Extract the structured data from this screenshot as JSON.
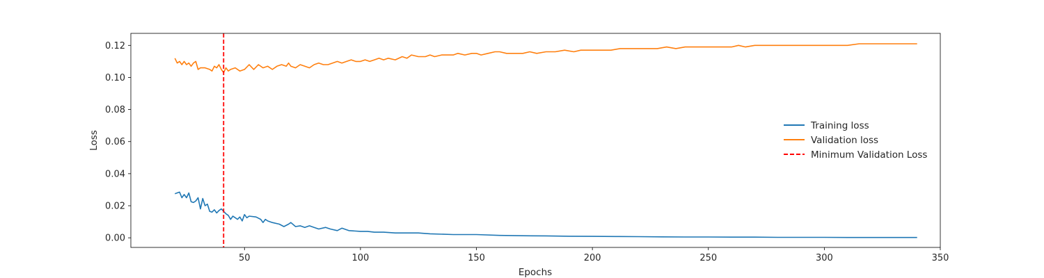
{
  "chart_data": {
    "type": "line",
    "xlabel": "Epochs",
    "ylabel": "Loss",
    "xlim": [
      1,
      350
    ],
    "ylim": [
      -0.006,
      0.1275
    ],
    "x_ticks": [
      50,
      100,
      150,
      200,
      250,
      300,
      350
    ],
    "y_ticks": [
      0.0,
      0.02,
      0.04,
      0.06,
      0.08,
      0.1,
      0.12
    ],
    "x_tick_labels": [
      "50",
      "100",
      "150",
      "200",
      "250",
      "300",
      "350"
    ],
    "y_tick_labels": [
      "0.00",
      "0.02",
      "0.04",
      "0.06",
      "0.08",
      "0.10",
      "0.12"
    ],
    "grid": false,
    "legend_position": "center-right",
    "series": [
      {
        "name": "Training loss",
        "color": "#1f77b4",
        "points": [
          [
            20,
            0.0275
          ],
          [
            22,
            0.0285
          ],
          [
            23,
            0.025
          ],
          [
            24,
            0.027
          ],
          [
            25,
            0.025
          ],
          [
            26,
            0.028
          ],
          [
            27,
            0.0225
          ],
          [
            28,
            0.022
          ],
          [
            29,
            0.023
          ],
          [
            30,
            0.025
          ],
          [
            31,
            0.018
          ],
          [
            32,
            0.0245
          ],
          [
            33,
            0.02
          ],
          [
            34,
            0.021
          ],
          [
            35,
            0.0165
          ],
          [
            36,
            0.016
          ],
          [
            37,
            0.0175
          ],
          [
            38,
            0.0155
          ],
          [
            39,
            0.017
          ],
          [
            40,
            0.018
          ],
          [
            41,
            0.0165
          ],
          [
            42,
            0.015
          ],
          [
            43,
            0.014
          ],
          [
            44,
            0.0115
          ],
          [
            45,
            0.0135
          ],
          [
            46,
            0.0125
          ],
          [
            47,
            0.0115
          ],
          [
            48,
            0.013
          ],
          [
            49,
            0.0105
          ],
          [
            50,
            0.0145
          ],
          [
            51,
            0.0125
          ],
          [
            52,
            0.0135
          ],
          [
            55,
            0.013
          ],
          [
            57,
            0.0115
          ],
          [
            58,
            0.0095
          ],
          [
            59,
            0.0115
          ],
          [
            60,
            0.0105
          ],
          [
            62,
            0.0095
          ],
          [
            65,
            0.0085
          ],
          [
            67,
            0.007
          ],
          [
            69,
            0.0085
          ],
          [
            70,
            0.0095
          ],
          [
            72,
            0.007
          ],
          [
            74,
            0.0075
          ],
          [
            76,
            0.0065
          ],
          [
            78,
            0.0075
          ],
          [
            80,
            0.0065
          ],
          [
            82,
            0.0055
          ],
          [
            85,
            0.0065
          ],
          [
            87,
            0.0055
          ],
          [
            90,
            0.0045
          ],
          [
            92,
            0.006
          ],
          [
            95,
            0.0045
          ],
          [
            100,
            0.004
          ],
          [
            103,
            0.004
          ],
          [
            106,
            0.0035
          ],
          [
            110,
            0.0035
          ],
          [
            115,
            0.003
          ],
          [
            120,
            0.003
          ],
          [
            125,
            0.003
          ],
          [
            130,
            0.0025
          ],
          [
            140,
            0.002
          ],
          [
            150,
            0.002
          ],
          [
            160,
            0.0015
          ],
          [
            170,
            0.0013
          ],
          [
            180,
            0.0012
          ],
          [
            190,
            0.001
          ],
          [
            200,
            0.0009
          ],
          [
            210,
            0.0008
          ],
          [
            220,
            0.0007
          ],
          [
            230,
            0.0006
          ],
          [
            240,
            0.0005
          ],
          [
            250,
            0.0005
          ],
          [
            260,
            0.0004
          ],
          [
            270,
            0.0004
          ],
          [
            280,
            0.0003
          ],
          [
            290,
            0.0003
          ],
          [
            300,
            0.0003
          ],
          [
            310,
            0.0002
          ],
          [
            320,
            0.0002
          ],
          [
            330,
            0.0002
          ],
          [
            340,
            0.0002
          ]
        ]
      },
      {
        "name": "Validation loss",
        "color": "#ff7f0e",
        "points": [
          [
            20,
            0.112
          ],
          [
            21,
            0.109
          ],
          [
            22,
            0.11
          ],
          [
            23,
            0.108
          ],
          [
            24,
            0.11
          ],
          [
            25,
            0.108
          ],
          [
            26,
            0.109
          ],
          [
            27,
            0.107
          ],
          [
            28,
            0.109
          ],
          [
            29,
            0.11
          ],
          [
            30,
            0.105
          ],
          [
            31,
            0.106
          ],
          [
            33,
            0.106
          ],
          [
            35,
            0.105
          ],
          [
            36,
            0.104
          ],
          [
            37,
            0.107
          ],
          [
            38,
            0.106
          ],
          [
            39,
            0.108
          ],
          [
            40,
            0.105
          ],
          [
            41,
            0.103
          ],
          [
            42,
            0.106
          ],
          [
            43,
            0.104
          ],
          [
            44,
            0.105
          ],
          [
            46,
            0.106
          ],
          [
            48,
            0.104
          ],
          [
            50,
            0.105
          ],
          [
            52,
            0.108
          ],
          [
            54,
            0.105
          ],
          [
            56,
            0.108
          ],
          [
            58,
            0.106
          ],
          [
            60,
            0.107
          ],
          [
            62,
            0.105
          ],
          [
            64,
            0.107
          ],
          [
            66,
            0.108
          ],
          [
            68,
            0.107
          ],
          [
            69,
            0.109
          ],
          [
            70,
            0.107
          ],
          [
            72,
            0.106
          ],
          [
            74,
            0.108
          ],
          [
            76,
            0.107
          ],
          [
            78,
            0.106
          ],
          [
            80,
            0.108
          ],
          [
            82,
            0.109
          ],
          [
            84,
            0.108
          ],
          [
            86,
            0.108
          ],
          [
            88,
            0.109
          ],
          [
            90,
            0.11
          ],
          [
            92,
            0.109
          ],
          [
            94,
            0.11
          ],
          [
            96,
            0.111
          ],
          [
            98,
            0.11
          ],
          [
            100,
            0.11
          ],
          [
            102,
            0.111
          ],
          [
            104,
            0.11
          ],
          [
            106,
            0.111
          ],
          [
            108,
            0.112
          ],
          [
            110,
            0.111
          ],
          [
            112,
            0.112
          ],
          [
            115,
            0.111
          ],
          [
            118,
            0.113
          ],
          [
            120,
            0.112
          ],
          [
            122,
            0.114
          ],
          [
            125,
            0.113
          ],
          [
            128,
            0.113
          ],
          [
            130,
            0.114
          ],
          [
            132,
            0.113
          ],
          [
            135,
            0.114
          ],
          [
            138,
            0.114
          ],
          [
            140,
            0.114
          ],
          [
            142,
            0.115
          ],
          [
            145,
            0.114
          ],
          [
            148,
            0.115
          ],
          [
            150,
            0.115
          ],
          [
            152,
            0.114
          ],
          [
            155,
            0.115
          ],
          [
            158,
            0.116
          ],
          [
            160,
            0.116
          ],
          [
            163,
            0.115
          ],
          [
            166,
            0.115
          ],
          [
            170,
            0.115
          ],
          [
            173,
            0.116
          ],
          [
            176,
            0.115
          ],
          [
            180,
            0.116
          ],
          [
            184,
            0.116
          ],
          [
            188,
            0.117
          ],
          [
            192,
            0.116
          ],
          [
            195,
            0.117
          ],
          [
            198,
            0.117
          ],
          [
            202,
            0.117
          ],
          [
            205,
            0.117
          ],
          [
            208,
            0.117
          ],
          [
            212,
            0.118
          ],
          [
            216,
            0.118
          ],
          [
            220,
            0.118
          ],
          [
            224,
            0.118
          ],
          [
            228,
            0.118
          ],
          [
            232,
            0.119
          ],
          [
            236,
            0.118
          ],
          [
            240,
            0.119
          ],
          [
            245,
            0.119
          ],
          [
            250,
            0.119
          ],
          [
            255,
            0.119
          ],
          [
            260,
            0.119
          ],
          [
            263,
            0.12
          ],
          [
            266,
            0.119
          ],
          [
            270,
            0.12
          ],
          [
            275,
            0.12
          ],
          [
            280,
            0.12
          ],
          [
            285,
            0.12
          ],
          [
            290,
            0.12
          ],
          [
            295,
            0.12
          ],
          [
            300,
            0.12
          ],
          [
            305,
            0.12
          ],
          [
            310,
            0.12
          ],
          [
            315,
            0.121
          ],
          [
            320,
            0.121
          ],
          [
            325,
            0.121
          ],
          [
            330,
            0.121
          ],
          [
            335,
            0.121
          ],
          [
            340,
            0.121
          ]
        ]
      }
    ],
    "vline": {
      "name": "Minimum Validation Loss",
      "x": 41,
      "color": "#ff0000",
      "style": "dashed"
    }
  }
}
